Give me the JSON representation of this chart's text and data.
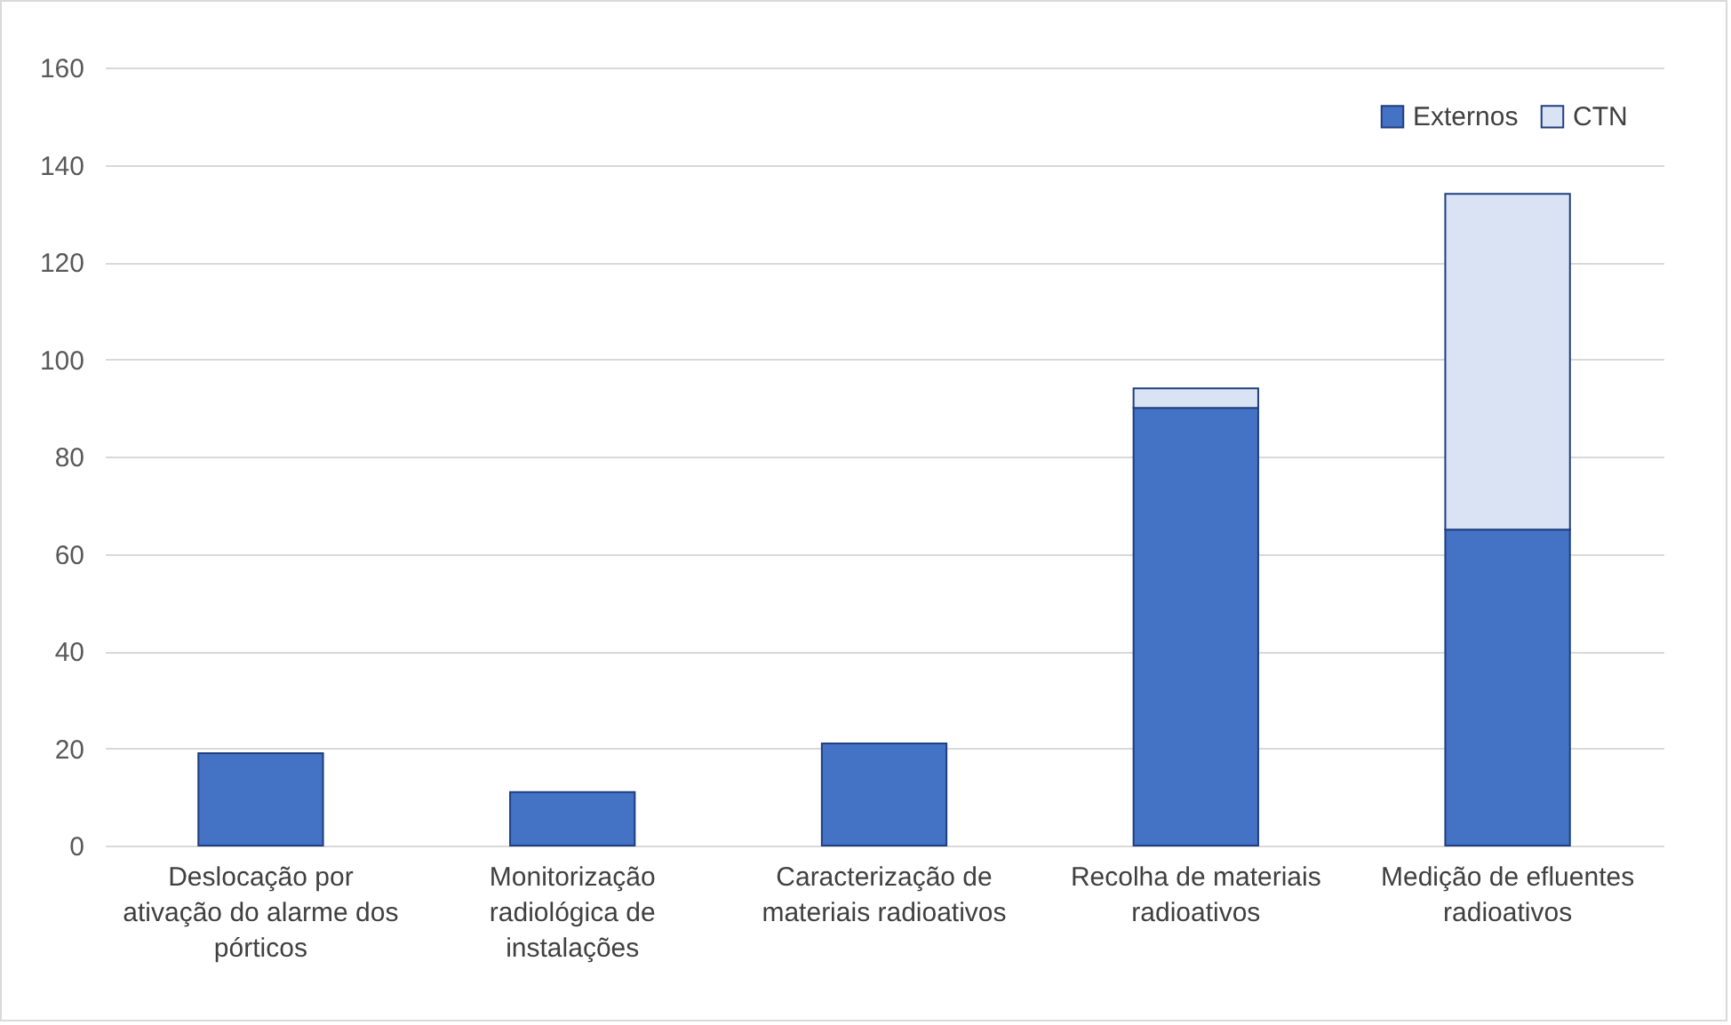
{
  "chart_data": {
    "type": "bar",
    "stacked": true,
    "categories": [
      "Deslocação por ativação do alarme dos pórticos",
      "Monitorização radiológica de instalações",
      "Caracterização de materiais radioativos",
      "Recolha de materiais radioativos",
      "Medição de efluentes radioativos"
    ],
    "series": [
      {
        "name": "Externos",
        "color": "#4472c4",
        "values": [
          19,
          11,
          21,
          90,
          65
        ]
      },
      {
        "name": "CTN",
        "color": "#dae3f3",
        "values": [
          0,
          0,
          0,
          4,
          69
        ]
      }
    ],
    "ylim": [
      0,
      160
    ],
    "yticks": [
      0,
      20,
      40,
      60,
      80,
      100,
      120,
      140,
      160
    ],
    "grid": "y",
    "legend": "top right"
  }
}
